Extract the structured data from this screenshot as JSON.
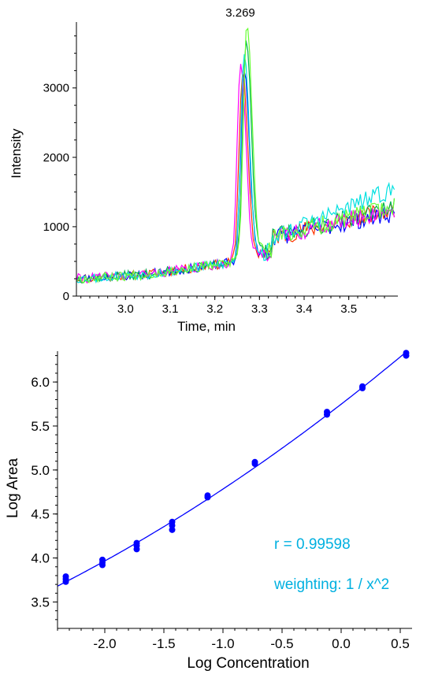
{
  "chart_data": [
    {
      "type": "line",
      "title": "",
      "xlabel": "Time, min",
      "ylabel": "Intensity",
      "xlim": [
        2.89,
        3.61
      ],
      "ylim": [
        0,
        3950
      ],
      "xticks": [
        3.0,
        3.1,
        3.2,
        3.3,
        3.4,
        3.5
      ],
      "xtick_labels": [
        "3.0",
        "3.1",
        "3.2",
        "3.3",
        "3.4",
        "3.5"
      ],
      "yticks": [
        0,
        1000,
        2000,
        3000
      ],
      "ytick_labels": [
        "0",
        "1000",
        "2000",
        "3000"
      ],
      "grid": false,
      "peak_label": "3.269",
      "peak_time": 3.269,
      "series": [
        {
          "color": "#ff3300",
          "apex": 3.262,
          "height": 3150,
          "tail": 1250,
          "seed": 11
        },
        {
          "color": "#0000ff",
          "apex": 3.266,
          "height": 3150,
          "tail": 1200,
          "seed": 23
        },
        {
          "color": "#00b050",
          "apex": 3.27,
          "height": 3650,
          "tail": 1300,
          "seed": 37
        },
        {
          "color": "#ff00ff",
          "apex": 3.258,
          "height": 3300,
          "tail": 1250,
          "seed": 41
        },
        {
          "color": "#00e0e0",
          "apex": 3.266,
          "height": 3450,
          "tail": 1550,
          "seed": 53
        },
        {
          "color": "#66ff33",
          "apex": 3.272,
          "height": 3850,
          "tail": 1300,
          "seed": 67
        }
      ]
    },
    {
      "type": "scatter",
      "title": "",
      "xlabel": "Log Concentration",
      "ylabel": "Log Area",
      "xlim": [
        -2.4,
        0.6
      ],
      "ylim": [
        3.2,
        6.35
      ],
      "xticks": [
        -2.0,
        -1.5,
        -1.0,
        -0.5,
        0.0,
        0.5
      ],
      "xtick_labels": [
        "-2.0",
        "-1.5",
        "-1.0",
        "-0.5",
        "0.0",
        "0.5"
      ],
      "yticks": [
        3.5,
        4.0,
        4.5,
        5.0,
        5.5,
        6.0
      ],
      "ytick_labels": [
        "3.5",
        "4.0",
        "4.5",
        "5.0",
        "5.5",
        "6.0"
      ],
      "grid": false,
      "point_color": "#0000ff",
      "fit_color": "#0000ff",
      "points": [
        {
          "x": -2.33,
          "y": 3.73
        },
        {
          "x": -2.33,
          "y": 3.76
        },
        {
          "x": -2.33,
          "y": 3.79
        },
        {
          "x": -2.02,
          "y": 3.92
        },
        {
          "x": -2.02,
          "y": 3.95
        },
        {
          "x": -2.02,
          "y": 3.98
        },
        {
          "x": -1.73,
          "y": 4.1
        },
        {
          "x": -1.73,
          "y": 4.14
        },
        {
          "x": -1.73,
          "y": 4.17
        },
        {
          "x": -1.43,
          "y": 4.32
        },
        {
          "x": -1.43,
          "y": 4.37
        },
        {
          "x": -1.43,
          "y": 4.41
        },
        {
          "x": -1.13,
          "y": 4.69
        },
        {
          "x": -1.13,
          "y": 4.71
        },
        {
          "x": -0.73,
          "y": 5.07
        },
        {
          "x": -0.73,
          "y": 5.09
        },
        {
          "x": -0.12,
          "y": 5.63
        },
        {
          "x": -0.12,
          "y": 5.66
        },
        {
          "x": 0.18,
          "y": 5.93
        },
        {
          "x": 0.18,
          "y": 5.95
        },
        {
          "x": 0.55,
          "y": 6.3
        },
        {
          "x": 0.55,
          "y": 6.33
        }
      ],
      "annotations": {
        "r_text": "r = 0.99598",
        "weighting_text": "weighting: 1 / x^2",
        "color": "#00b0e0"
      }
    }
  ]
}
